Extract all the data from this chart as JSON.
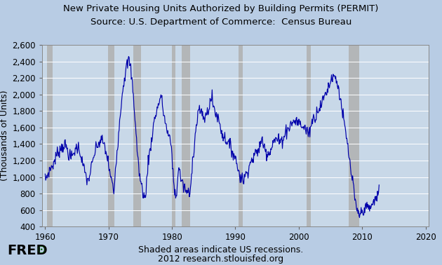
{
  "title_line1": "New Private Housing Units Authorized by Building Permits (PERMIT)",
  "title_line2": "Source: U.S. Department of Commerce:  Census Bureau",
  "ylabel": "(Thousands of Units)",
  "note_line1": "Shaded areas indicate US recessions.",
  "note_line2": "2012 research.stlouisfed.org",
  "xlim": [
    1959.5,
    2020.5
  ],
  "ylim": [
    400,
    2600
  ],
  "yticks": [
    400,
    600,
    800,
    1000,
    1200,
    1400,
    1600,
    1800,
    2000,
    2200,
    2400,
    2600
  ],
  "xticks": [
    1960,
    1970,
    1980,
    1990,
    2000,
    2010,
    2020
  ],
  "line_color": "#0000AA",
  "background_color": "#B8CCE4",
  "plot_bg_color": "#C8D8E8",
  "recession_color": "#B0B0B0",
  "recession_alpha": 0.85,
  "recessions": [
    [
      1960.25,
      1961.17
    ],
    [
      1969.92,
      1970.92
    ],
    [
      1973.92,
      1975.17
    ],
    [
      1980.0,
      1980.58
    ],
    [
      1981.5,
      1982.92
    ],
    [
      1990.5,
      1991.17
    ],
    [
      2001.25,
      2001.92
    ],
    [
      2007.92,
      2009.5
    ]
  ],
  "title_fontsize": 9.5,
  "axis_fontsize": 9,
  "tick_fontsize": 8.5
}
